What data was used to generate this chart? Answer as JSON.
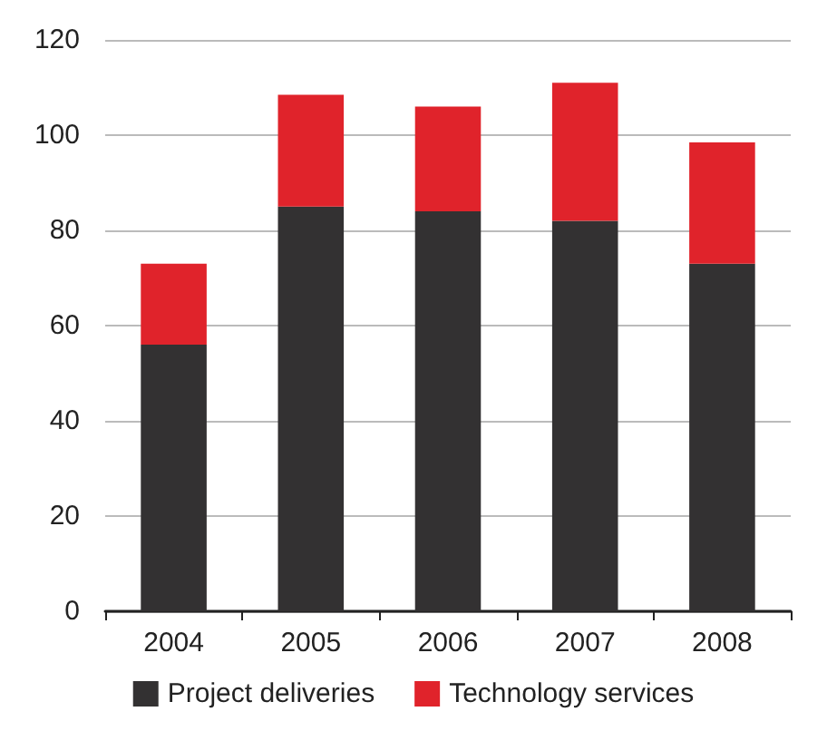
{
  "chart_data": {
    "type": "bar",
    "stacked": true,
    "categories": [
      "2004",
      "2005",
      "2006",
      "2007",
      "2008"
    ],
    "series": [
      {
        "name": "Project deliveries",
        "color": "#333132",
        "values": [
          56,
          85,
          84,
          82,
          73
        ]
      },
      {
        "name": "Technology services",
        "color": "#e0232b",
        "values": [
          17,
          23.5,
          22,
          29,
          25.5
        ]
      }
    ],
    "ylim": [
      0,
      120
    ],
    "yticks": [
      0,
      20,
      40,
      60,
      80,
      100,
      120
    ],
    "grid": "y",
    "legend": "bottom"
  }
}
